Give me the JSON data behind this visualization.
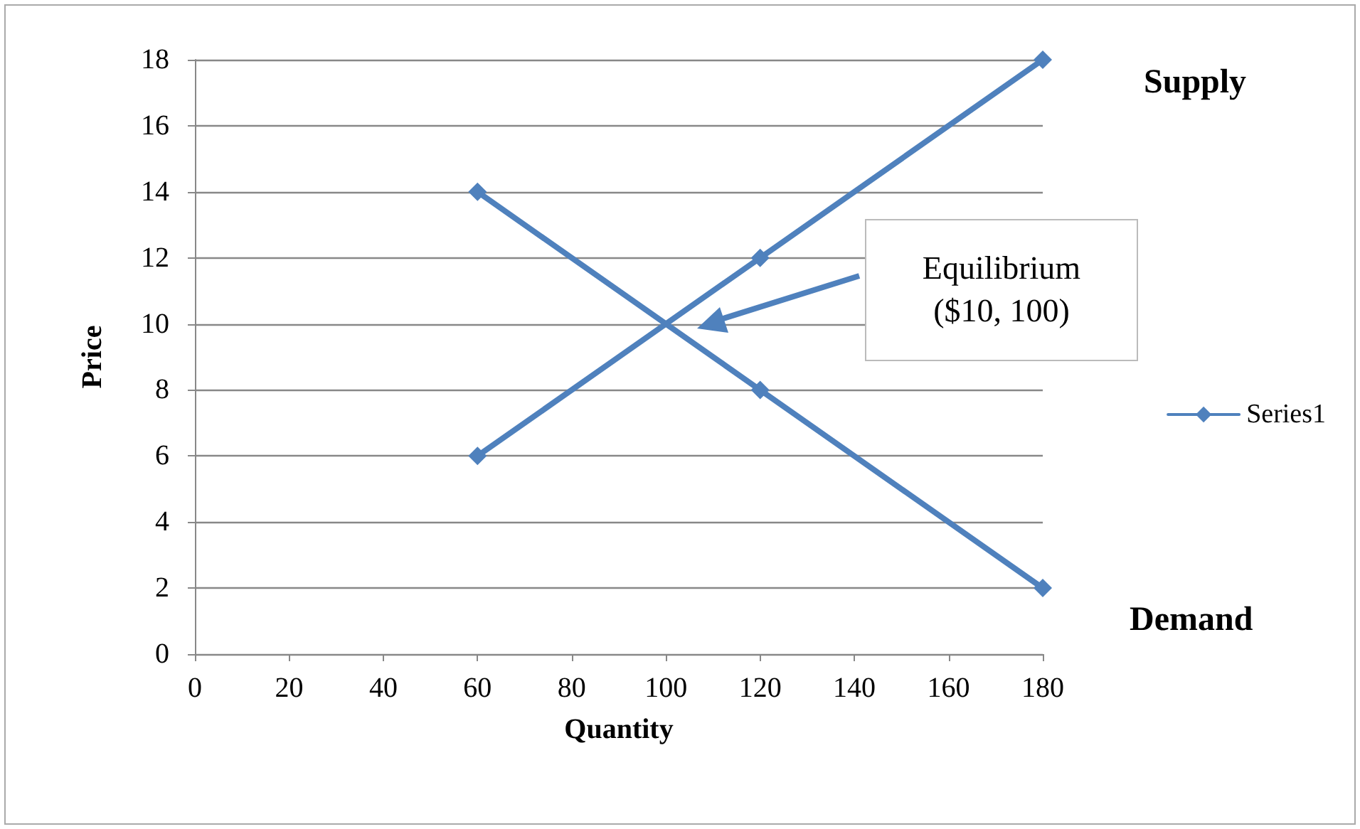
{
  "chart_data": {
    "type": "line",
    "xlabel": "Quantity",
    "ylabel": "Price",
    "series": [
      {
        "name": "Series1",
        "color": "#4f81bd",
        "x": [
          60,
          120,
          180
        ],
        "values": [
          6,
          12,
          18
        ]
      },
      {
        "color": "#4f81bd",
        "x": [
          60,
          120,
          180
        ],
        "values": [
          14,
          8,
          2
        ]
      }
    ],
    "xlim": [
      0,
      180
    ],
    "xticks": [
      0,
      20,
      40,
      60,
      80,
      100,
      120,
      140,
      160,
      180
    ],
    "ylim": [
      0,
      18
    ],
    "yticks": [
      0,
      2,
      4,
      6,
      8,
      10,
      12,
      14,
      16,
      18
    ],
    "grid": "y",
    "legend": "right",
    "marker": "diamond",
    "line_style": "solid",
    "annotations": [
      "Supply",
      "Demand",
      "Equilibrium\n($10, 100)"
    ]
  }
}
